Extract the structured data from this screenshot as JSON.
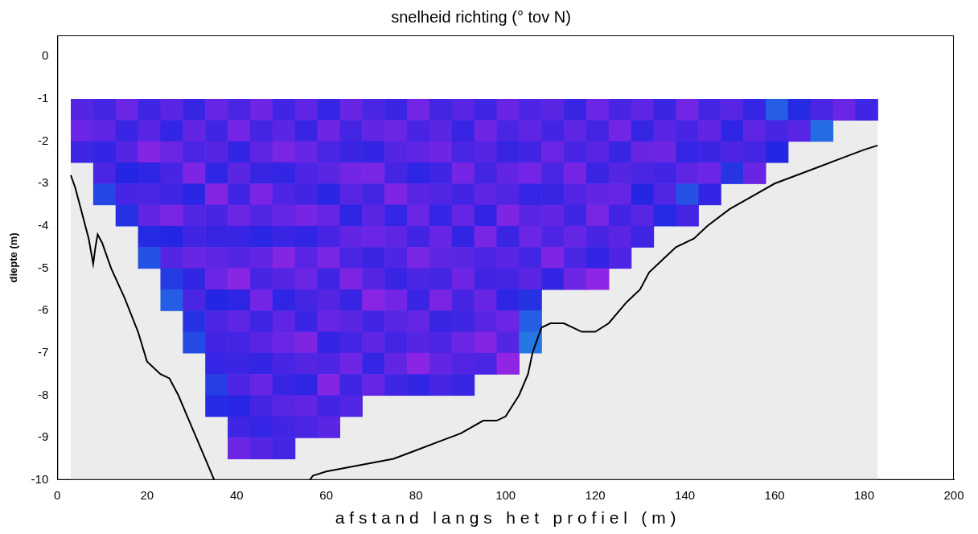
{
  "chart_data": {
    "type": "heatmap",
    "title": "snelheid richting (° tov N)",
    "x_label": "a f s t a n d   l a n g s   h e t   p r o f i e l   ( m )",
    "y_label": "diepte (m)",
    "xlim": [
      0,
      200
    ],
    "ylim": [
      -10,
      0.5
    ],
    "xticks": [
      0,
      20,
      40,
      60,
      80,
      100,
      120,
      140,
      160,
      180,
      200
    ],
    "yticks": [
      -10,
      -9,
      -8,
      -7,
      -6,
      -5,
      -4,
      -3,
      -2,
      -1,
      0
    ],
    "grid": false,
    "x_edges": [
      3,
      8,
      13,
      18,
      23,
      28,
      33,
      38,
      43,
      48,
      53,
      58,
      63,
      68,
      73,
      78,
      83,
      88,
      93,
      98,
      103,
      108,
      113,
      118,
      123,
      128,
      133,
      138,
      143,
      148,
      153,
      158,
      163,
      168,
      173,
      178,
      183
    ],
    "y_edges": [
      -1,
      -1.5,
      -2,
      -2.5,
      -3,
      -3.5,
      -4,
      -4.5,
      -5,
      -5.5,
      -6,
      -6.5,
      -7,
      -7.5,
      -8,
      -8.5,
      -9,
      -9.5,
      -10
    ],
    "cells": [
      [
        255,
        262,
        248
      ],
      [
        250,
        258,
        244,
        252,
        230
      ],
      [
        262,
        247,
        255,
        240,
        251,
        236
      ],
      [
        248,
        256,
        270,
        243,
        252,
        259,
        238,
        226
      ],
      [
        257,
        244,
        262,
        251,
        248,
        266,
        240,
        255,
        233,
        222
      ],
      [
        246,
        259,
        252,
        268,
        242,
        255,
        249,
        261,
        244,
        252,
        236,
        228
      ],
      [
        260,
        248,
        255,
        243,
        270,
        251,
        246,
        258,
        262,
        240,
        253,
        249,
        245,
        232,
        238
      ],
      [
        252,
        265,
        244,
        257,
        249,
        262,
        246,
        255,
        272,
        243,
        258,
        250,
        247,
        253,
        241,
        248,
        262
      ],
      [
        263,
        250,
        258,
        246,
        267,
        254,
        242,
        259,
        251,
        264,
        248,
        256,
        244,
        261,
        250,
        245,
        255
      ],
      [
        249,
        257,
        266,
        244,
        253,
        260,
        247,
        270,
        255,
        243,
        258,
        262,
        251,
        246,
        256,
        249,
        250
      ],
      [
        258,
        246,
        261,
        253,
        249,
        265,
        244,
        256,
        262,
        250,
        247,
        268,
        255,
        243,
        259,
        252
      ],
      [
        245,
        263,
        252,
        257,
        242,
        260,
        251,
        266,
        248,
        255,
        261,
        244,
        253,
        270,
        249,
        257
      ],
      [
        261,
        250,
        247,
        264,
        256,
        243,
        259,
        252,
        268,
        246,
        257,
        250,
        263,
        248,
        254
      ],
      [
        252,
        259,
        244,
        266,
        250,
        257,
        262,
        247,
        255,
        271,
        249,
        258,
        245,
        260
      ],
      [
        247,
        262,
        255,
        250,
        268,
        245,
        258,
        253,
        246,
        264,
        256,
        250,
        259,
        248
      ],
      [
        264,
        251,
        258,
        243,
        256,
        262,
        249,
        266,
        252,
        247,
        260,
        255,
        272,
        244
      ],
      [
        250,
        257,
        263,
        248,
        254,
        245,
        261,
        258,
        250,
        267,
        246,
        253,
        259,
        251
      ],
      [
        256,
        246,
        252,
        265,
        249,
        260,
        244,
        257,
        263,
        251,
        248,
        262,
        254,
        247
      ],
      [
        248,
        263,
        255,
        250,
        258,
        244,
        266,
        253,
        249,
        261,
        256,
        270,
        252
      ],
      [
        261,
        252,
        246,
        259,
        254,
        268,
        247,
        256,
        250,
        243,
        262,
        255,
        274
      ],
      [
        253,
        258,
        249,
        264,
        245,
        256,
        262,
        250,
        257,
        236,
        222,
        214
      ],
      [
        257,
        249,
        262,
        252,
        246,
        259,
        253,
        268,
        244
      ],
      [
        246,
        258,
        251,
        265,
        254,
        248,
        260,
        252,
        263
      ],
      [
        262,
        250,
        256,
        247,
        259,
        266,
        251,
        244,
        273
      ],
      [
        251,
        264,
        247,
        255,
        260,
        249,
        257,
        253
      ],
      [
        258,
        245,
        261,
        252,
        240,
        256,
        248
      ],
      [
        247,
        256,
        263,
        249,
        254,
        238
      ],
      [
        264,
        251,
        245,
        258,
        226,
        250
      ],
      [
        250,
        259,
        247,
        262,
        244
      ],
      [
        256,
        243,
        253,
        235
      ],
      [
        245,
        258,
        250,
        261
      ],
      [
        222,
        251,
        240
      ],
      [
        238,
        256
      ],
      [
        252,
        218
      ],
      [
        262
      ],
      [
        248
      ]
    ],
    "bed": {
      "color": "#000000",
      "x": [
        3,
        4,
        5,
        7,
        8,
        8.5,
        9,
        10,
        12,
        15,
        18,
        20,
        23,
        25,
        27,
        29,
        31,
        33,
        35,
        36,
        45,
        55,
        57,
        60,
        65,
        70,
        75,
        80,
        85,
        90,
        95,
        98,
        100,
        103,
        105,
        106,
        108,
        110,
        113,
        117,
        120,
        123,
        127,
        130,
        132,
        135,
        138,
        142,
        145,
        150,
        155,
        160,
        165,
        170,
        175,
        180,
        183
      ],
      "y": [
        -2.8,
        -3.1,
        -3.5,
        -4.3,
        -4.9,
        -4.5,
        -4.2,
        -4.4,
        -5,
        -5.7,
        -6.5,
        -7.2,
        -7.5,
        -7.6,
        -8,
        -8.5,
        -9,
        -9.5,
        -10,
        -10.3,
        null,
        -10.2,
        -9.9,
        -9.8,
        -9.7,
        -9.6,
        -9.5,
        -9.3,
        -9.1,
        -8.9,
        -8.6,
        -8.6,
        -8.5,
        -8,
        -7.5,
        -7,
        -6.4,
        -6.3,
        -6.3,
        -6.5,
        -6.5,
        -6.3,
        -5.8,
        -5.5,
        -5.1,
        -4.8,
        -4.5,
        -4.3,
        -4,
        -3.6,
        -3.3,
        -3,
        -2.8,
        -2.6,
        -2.4,
        -2.2,
        -2.1
      ]
    }
  }
}
